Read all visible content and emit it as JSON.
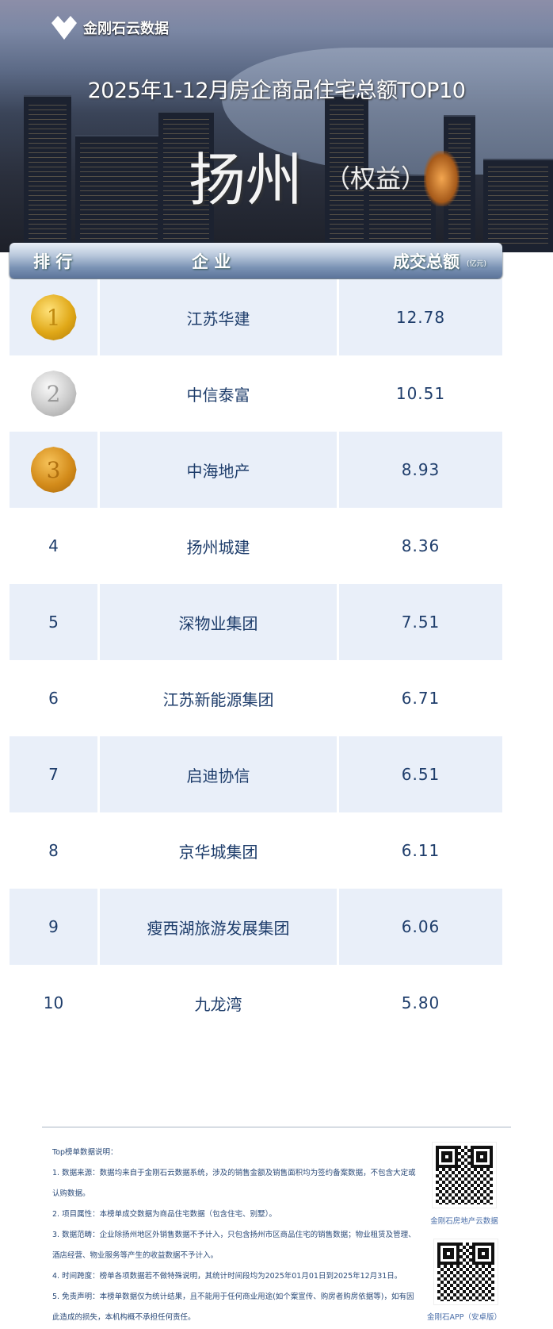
{
  "brand": {
    "name": "金刚石云数据"
  },
  "header": {
    "title": "2025年1-12月房企商品住宅总额TOP10",
    "city": "扬州",
    "subtitle": "（权益）"
  },
  "table": {
    "columns": {
      "rank": "排 行",
      "company": "企 业",
      "amount": "成交总额",
      "unit": "(亿元)"
    },
    "rows": [
      {
        "rank": "1",
        "medal": "gold",
        "company": "江苏华建",
        "amount": "12.78"
      },
      {
        "rank": "2",
        "medal": "silver",
        "company": "中信泰富",
        "amount": "10.51"
      },
      {
        "rank": "3",
        "medal": "bronze",
        "company": "中海地产",
        "amount": "8.93"
      },
      {
        "rank": "4",
        "company": "扬州城建",
        "amount": "8.36"
      },
      {
        "rank": "5",
        "company": "深物业集团",
        "amount": "7.51"
      },
      {
        "rank": "6",
        "company": "江苏新能源集团",
        "amount": "6.71"
      },
      {
        "rank": "7",
        "company": "启迪协信",
        "amount": "6.51"
      },
      {
        "rank": "8",
        "company": "京华城集团",
        "amount": "6.11"
      },
      {
        "rank": "9",
        "company": "瘦西湖旅游发展集团",
        "amount": "6.06"
      },
      {
        "rank": "10",
        "company": "九龙湾",
        "amount": "5.80"
      }
    ]
  },
  "notes": {
    "heading": "Top榜单数据说明：",
    "items": [
      "1. 数据来源：数据均来自于金刚石云数据系统，涉及的销售金额及销售面积均为签约备案数据，不包含大定或认购数据。",
      "2. 项目属性：本榜单成交数据为商品住宅数据（包含住宅、别墅）。",
      "3. 数据范畴：企业除扬州地区外销售数据不予计入，只包含扬州市区商品住宅的销售数据；物业租赁及管理、酒店经营、物业服务等产生的收益数据不予计入。",
      "4. 时间跨度：榜单各项数据若不做特殊说明，其统计时间段均为2025年01月01日到2025年12月31日。",
      "5. 免责声明：本榜单数据仅为统计结果，且不能用于任何商业用途(如个案宣传、购房者购房依据等)，如有因此造成的损失，本机构概不承担任何责任。"
    ]
  },
  "qr": [
    {
      "label": "金刚石房地产云数据"
    },
    {
      "label": "金刚石APP（安卓版）"
    }
  ]
}
